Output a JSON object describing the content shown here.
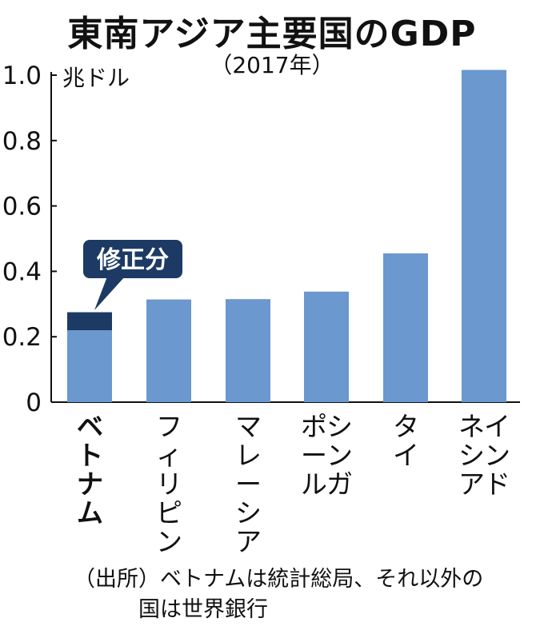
{
  "title": "東南アジア主要国のGDP",
  "subtitle": "（2017年）",
  "source": "（出所）ベトナムは統計総局、それ以外の\n　　　国は世界銀行",
  "colors": {
    "bar": "#6a98cf",
    "revision": "#1c3a63",
    "callout": "#1c3a63",
    "axis": "#111111"
  },
  "chart_data": {
    "type": "bar",
    "title": "東南アジア主要国のGDP",
    "subtitle": "（2017年）",
    "unit_label": "兆ドル",
    "ylim": [
      0,
      1.0
    ],
    "yticks": [
      "0",
      "0.2",
      "0.4",
      "0.6",
      "0.8",
      "1.0"
    ],
    "grid": false,
    "categories": [
      "ベトナム",
      "フィリピン",
      "マレーシア",
      "シンガポール",
      "タイ",
      "インドネシア"
    ],
    "category_columns": [
      [
        "ベトナム"
      ],
      [
        "フィリピン"
      ],
      [
        "マレーシア"
      ],
      [
        "ポール",
        "シンガ"
      ],
      [
        "タイ"
      ],
      [
        "ネシア",
        "インド"
      ]
    ],
    "highlight_category": "ベトナム",
    "values": [
      0.22,
      0.314,
      0.315,
      0.338,
      0.455,
      1.016
    ],
    "revision": {
      "category": "ベトナム",
      "value": 0.055,
      "label": "修正分"
    }
  }
}
